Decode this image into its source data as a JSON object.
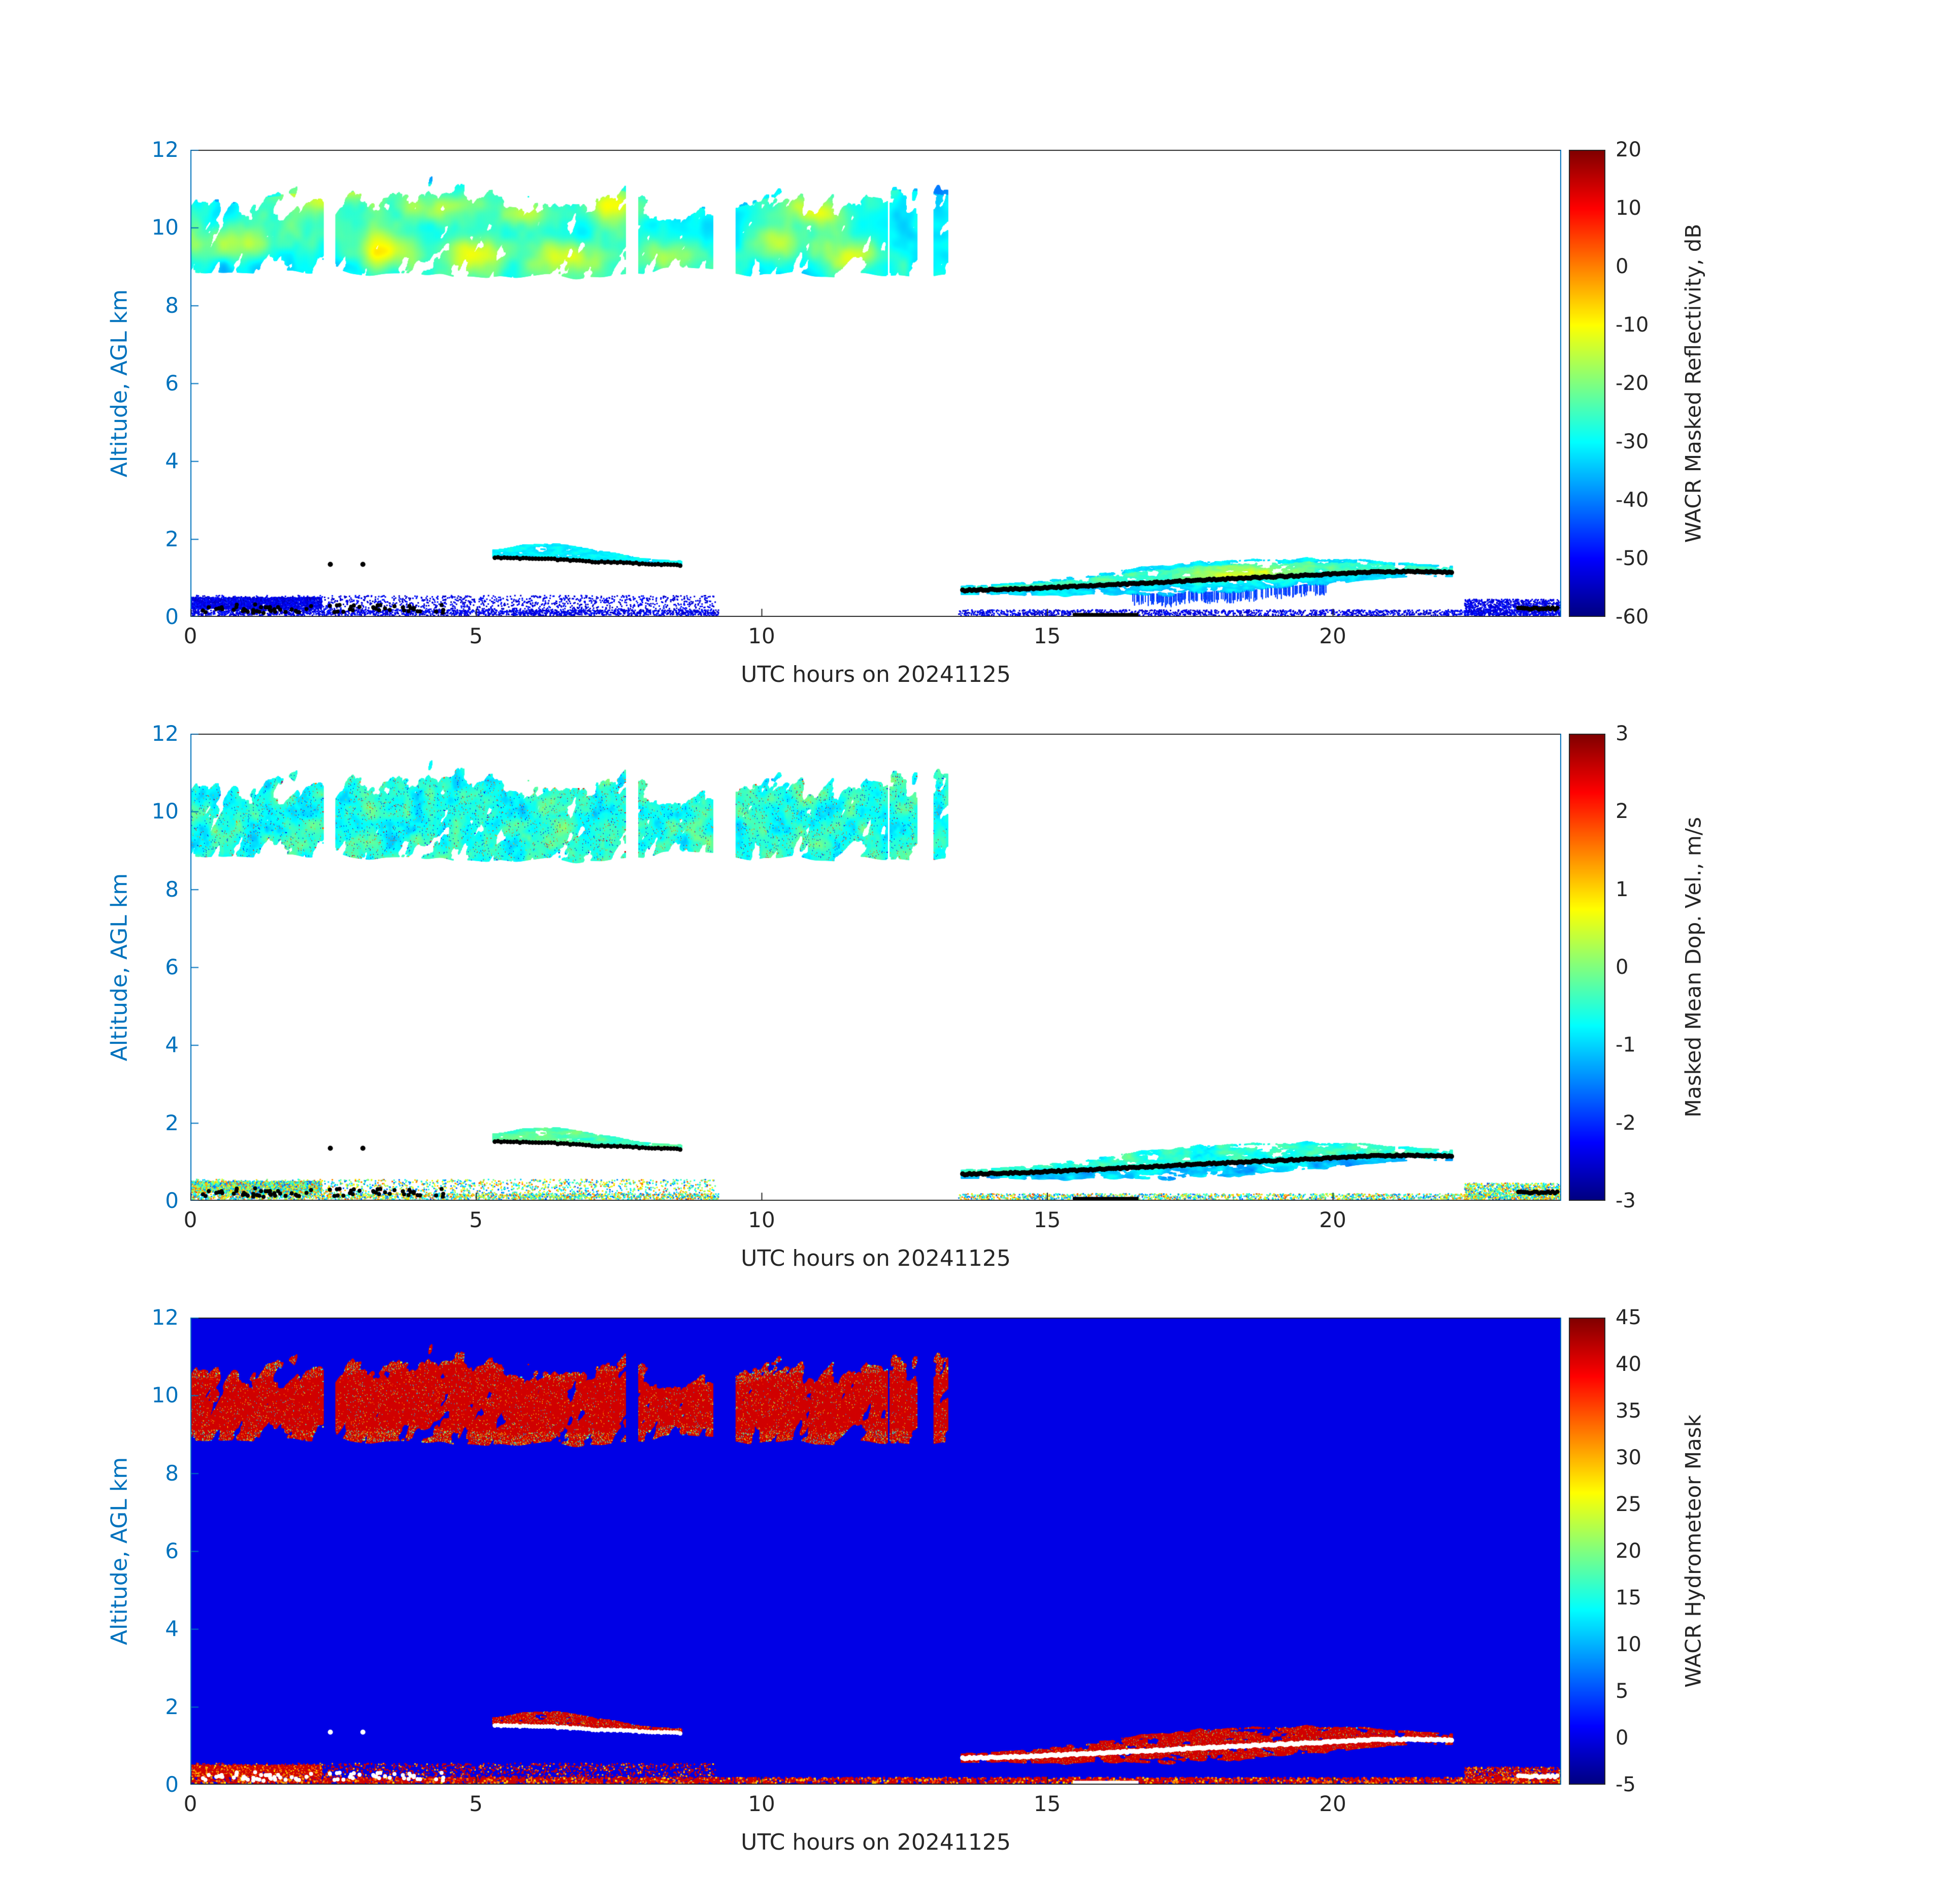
{
  "figure": {
    "background": "#ffffff",
    "axis_text_color": "#262626",
    "y_axis_color": "#0072BD",
    "colormap": "jet",
    "date": "20241125"
  },
  "chart_data": [
    {
      "type": "heatmap",
      "field": "reflectivity",
      "xlabel": "UTC hours on 20241125",
      "ylabel": "Altitude, AGL km",
      "xlim": [
        0,
        24
      ],
      "ylim": [
        0,
        12
      ],
      "xticks": [
        0,
        5,
        10,
        15,
        20
      ],
      "yticks": [
        0,
        2,
        4,
        6,
        8,
        10,
        12
      ],
      "clim": [
        -60,
        20
      ],
      "colorbar_ticks": [
        20,
        10,
        0,
        -10,
        -20,
        -30,
        -40,
        -50,
        -60
      ],
      "colorbar_label": "WACR Masked Reflectivity, dB",
      "grid": false,
      "legend": "colorbar-right"
    },
    {
      "type": "heatmap",
      "field": "velocity",
      "xlabel": "UTC hours on 20241125",
      "ylabel": "Altitude, AGL km",
      "xlim": [
        0,
        24
      ],
      "ylim": [
        0,
        12
      ],
      "xticks": [
        0,
        5,
        10,
        15,
        20
      ],
      "yticks": [
        0,
        2,
        4,
        6,
        8,
        10,
        12
      ],
      "clim": [
        -3,
        3
      ],
      "colorbar_ticks": [
        3,
        2,
        1,
        0,
        -1,
        -2,
        -3
      ],
      "colorbar_label": "Masked Mean Dop. Vel., m/s",
      "grid": false,
      "legend": "colorbar-right"
    },
    {
      "type": "heatmap",
      "field": "mask",
      "xlabel": "UTC hours on 20241125",
      "ylabel": "Altitude, AGL km",
      "xlim": [
        0,
        24
      ],
      "ylim": [
        0,
        12
      ],
      "xticks": [
        0,
        5,
        10,
        15,
        20
      ],
      "yticks": [
        0,
        2,
        4,
        6,
        8,
        10,
        12
      ],
      "clim": [
        -5,
        45
      ],
      "colorbar_ticks": [
        45,
        40,
        35,
        30,
        25,
        20,
        15,
        10,
        5,
        0,
        -5
      ],
      "colorbar_label": "WACR Hydrometeor Mask",
      "grid": false,
      "legend": "colorbar-right"
    }
  ],
  "features": {
    "cirrus": {
      "t_range": [
        0,
        13.35
      ],
      "z_base": 8.6,
      "z_base_var": 0.55,
      "z_top": 10.55,
      "z_top_var": 1.35,
      "gaps": [
        [
          2.33,
          2.55
        ],
        [
          7.62,
          7.85
        ],
        [
          9.15,
          9.55
        ],
        [
          11.95,
          12.25
        ],
        [
          12.72,
          13.02
        ]
      ],
      "bright_spots": [
        [
          0.7,
          9.6
        ],
        [
          2.0,
          10.9
        ],
        [
          3.0,
          11.15
        ],
        [
          3.4,
          9.4
        ],
        [
          4.3,
          10.5
        ],
        [
          5.0,
          9.35
        ],
        [
          5.8,
          10.3
        ],
        [
          6.6,
          9.25
        ],
        [
          7.3,
          10.6
        ],
        [
          8.3,
          9.2
        ],
        [
          10.3,
          9.6
        ],
        [
          10.9,
          10.35
        ],
        [
          11.6,
          9.3
        ]
      ],
      "reflectivity_db_range": [
        -45,
        -5
      ],
      "velocity_ms_range": [
        -1.5,
        0.3
      ],
      "mask_value": 41
    },
    "cloud_low_1": {
      "t_range": [
        5.3,
        8.6
      ],
      "base_line": [
        [
          5.35,
          1.52
        ],
        [
          6.0,
          1.5
        ],
        [
          6.5,
          1.47
        ],
        [
          7.0,
          1.42
        ],
        [
          7.5,
          1.4
        ],
        [
          8.0,
          1.36
        ],
        [
          8.55,
          1.33
        ]
      ],
      "max_depth": 0.3,
      "peak_t": 6.4,
      "reflectivity_db_range": [
        -38,
        -26
      ],
      "mask_value": 41
    },
    "cloud_low_2": {
      "t_range": [
        13.5,
        22.1
      ],
      "center_line": [
        [
          13.55,
          0.68
        ],
        [
          14.5,
          0.72
        ],
        [
          15.5,
          0.78
        ],
        [
          16.5,
          0.85
        ],
        [
          17.5,
          0.93
        ],
        [
          18.5,
          1.0
        ],
        [
          19.3,
          1.05
        ],
        [
          20.0,
          1.1
        ],
        [
          20.7,
          1.15
        ],
        [
          21.4,
          1.17
        ],
        [
          22.05,
          1.14
        ]
      ],
      "bright_t": [
        17.2,
        19.7
      ],
      "reflectivity_db_range": [
        -45,
        -12
      ],
      "mask_value": 41
    },
    "surface_clutter": {
      "dense_band": {
        "t": [
          0,
          2.3
        ],
        "z": [
          0.2,
          0.5
        ]
      },
      "sparse": {
        "t": [
          0,
          9.2
        ],
        "z": [
          0.05,
          0.55
        ]
      },
      "late": {
        "t": [
          22.3,
          24
        ],
        "z": [
          0.03,
          0.45
        ]
      },
      "line_ranges": [
        [
          0,
          9.25
        ],
        [
          13.45,
          24
        ]
      ],
      "reflectivity_db_range": [
        -57,
        -47
      ]
    },
    "black_bar": {
      "t": [
        15.45,
        16.6
      ],
      "z": [
        0.0,
        0.1
      ]
    },
    "near_surface_dots": {
      "t": [
        0.2,
        4.5
      ],
      "z": [
        0.1,
        0.32
      ],
      "count": 70
    },
    "isolated_dots": [
      [
        2.45,
        1.35
      ],
      [
        3.02,
        1.35
      ]
    ],
    "late_dots": {
      "t": [
        23.25,
        23.95
      ],
      "z": 0.22
    }
  }
}
